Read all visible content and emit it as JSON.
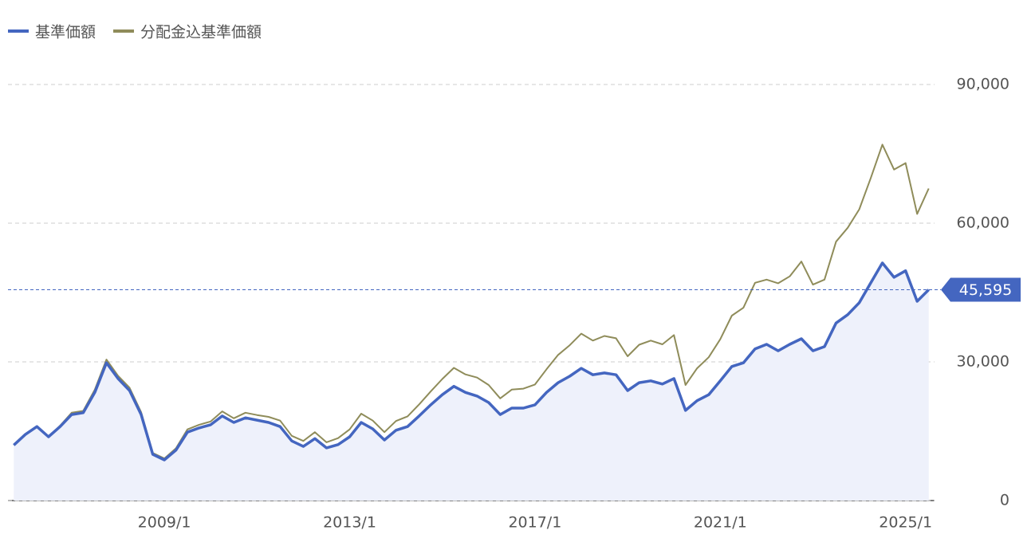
{
  "chart_data": {
    "type": "line",
    "categories": [
      null,
      null,
      null,
      null,
      null,
      null,
      null,
      null,
      null,
      null,
      null,
      null,
      null,
      "2009/1",
      null,
      null,
      null,
      null,
      null,
      null,
      null,
      null,
      null,
      null,
      null,
      null,
      null,
      null,
      null,
      "2013/1",
      null,
      null,
      null,
      null,
      null,
      null,
      null,
      null,
      null,
      null,
      null,
      null,
      null,
      null,
      null,
      "2017/1",
      null,
      null,
      null,
      null,
      null,
      null,
      null,
      null,
      null,
      null,
      null,
      null,
      null,
      null,
      null,
      "2021/1",
      null,
      null,
      null,
      null,
      null,
      null,
      null,
      null,
      null,
      null,
      null,
      null,
      null,
      null,
      null,
      "2025/1",
      null,
      null
    ],
    "series": [
      {
        "name": "基準価額",
        "color": "#4466c0",
        "area": true,
        "values": [
          12000,
          14300,
          16000,
          13800,
          16000,
          18600,
          19000,
          23400,
          29800,
          26400,
          23800,
          18600,
          10000,
          8800,
          10900,
          14800,
          15700,
          16400,
          18300,
          16900,
          17900,
          17400,
          16900,
          16000,
          12900,
          11700,
          13400,
          11400,
          12100,
          13800,
          16900,
          15500,
          13100,
          15200,
          16000,
          18300,
          20700,
          22900,
          24700,
          23400,
          22600,
          21200,
          18600,
          20000,
          20000,
          20700,
          23400,
          25500,
          26900,
          28600,
          27200,
          27600,
          27200,
          23800,
          25500,
          25900,
          25200,
          26400,
          19500,
          21600,
          22900,
          25900,
          29000,
          29800,
          32800,
          33800,
          32400,
          33800,
          35000,
          32400,
          33300,
          38400,
          40200,
          42800,
          47100,
          51400,
          48300,
          49700,
          43100,
          45595
        ]
      },
      {
        "name": "分配金込基準価額",
        "color": "#8f8c5a",
        "values": [
          12000,
          14300,
          16000,
          13800,
          16200,
          19000,
          19400,
          24000,
          30500,
          27000,
          24400,
          19100,
          10300,
          9100,
          11300,
          15400,
          16400,
          17100,
          19300,
          17800,
          19000,
          18500,
          18100,
          17300,
          14000,
          12900,
          14800,
          12600,
          13500,
          15400,
          18800,
          17300,
          14800,
          17200,
          18200,
          20800,
          23600,
          26300,
          28700,
          27300,
          26600,
          25000,
          22100,
          24000,
          24200,
          25100,
          28400,
          31500,
          33600,
          36100,
          34600,
          35600,
          35100,
          31200,
          33700,
          34600,
          33800,
          35800,
          25000,
          28600,
          31000,
          34900,
          40000,
          41700,
          47100,
          47800,
          47000,
          48500,
          51700,
          46700,
          47800,
          56000,
          59000,
          63000,
          69800,
          77000,
          71600,
          73000,
          62000,
          67500
        ]
      }
    ],
    "ylim": [
      0,
      90000
    ],
    "yticks": [
      0,
      {
        "value": 30000,
        "label": "30,000"
      },
      {
        "value": 60000,
        "label": "60,000"
      },
      {
        "value": 90000,
        "label": "90,000"
      }
    ],
    "grid": true,
    "last_price": {
      "value": 45595,
      "label": "45,595"
    }
  }
}
